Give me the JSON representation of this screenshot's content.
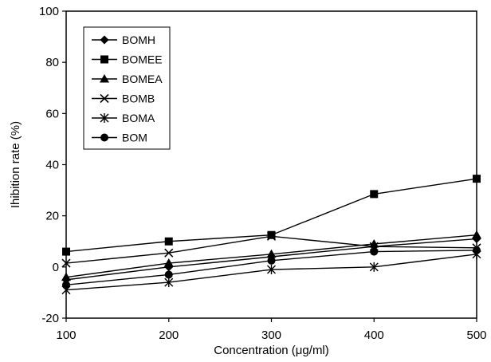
{
  "chart_data": {
    "type": "line",
    "title": "",
    "xlabel": "Concentration (μg/ml)",
    "ylabel": "Ihibition rate (%)",
    "x": [
      100,
      200,
      300,
      400,
      500
    ],
    "xlim": [
      100,
      500
    ],
    "ylim": [
      -20,
      100
    ],
    "xticks": [
      "100",
      "200",
      "300",
      "400",
      "500"
    ],
    "yticks": [
      "-20",
      "0",
      "20",
      "40",
      "60",
      "80",
      "100"
    ],
    "grid": false,
    "legend_position": "top-left",
    "series": [
      {
        "name": "BOMH",
        "marker": "diamond",
        "values": [
          -5,
          0,
          4,
          8,
          11
        ]
      },
      {
        "name": "BOMEE",
        "marker": "square",
        "values": [
          6,
          10,
          12.5,
          28.5,
          34.5
        ]
      },
      {
        "name": "BOMEA",
        "marker": "triangle",
        "values": [
          -4,
          1.5,
          5,
          9,
          12.5
        ]
      },
      {
        "name": "BOMB",
        "marker": "x",
        "values": [
          1.5,
          5.5,
          12,
          8,
          7.5
        ]
      },
      {
        "name": "BOMA",
        "marker": "asterisk",
        "values": [
          -9,
          -6,
          -1,
          0,
          5
        ]
      },
      {
        "name": "BOM",
        "marker": "circle",
        "values": [
          -7,
          -3,
          2.5,
          6,
          6.5
        ]
      }
    ]
  }
}
